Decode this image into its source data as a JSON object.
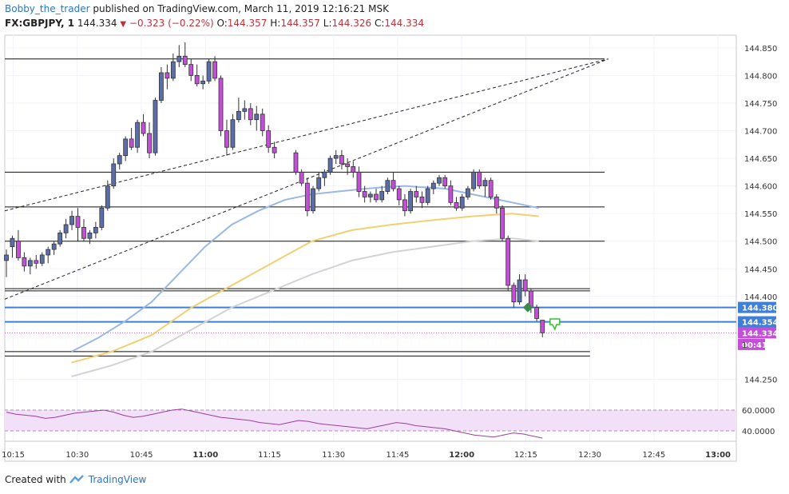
{
  "header": {
    "author": "Bobby_the_trader",
    "published": "published on TradingView.com, March 11, 2019 12:16:21 MSK",
    "symbol": "FX:GBPJPY, 1",
    "last": "144.334",
    "change": "−0.323 (−0.22%)",
    "o_label": "O:",
    "o_value": "144.357",
    "h_label": "H:",
    "h_value": "144.357",
    "l_label": "L:",
    "l_value": "144.326",
    "c_label": "C:",
    "c_value": "144.334"
  },
  "footer": {
    "created_with": "Created with",
    "brand": "TradingView"
  },
  "colors": {
    "bull": "#5b6ea8",
    "bear": "#c24fd6",
    "ma_blue": "#9ab8e6",
    "ma_yellow": "#f0d070",
    "ma_gray": "#d3d3d3",
    "level_blue": "#3f7fd6",
    "rsi_line": "#9c3f9c",
    "rsi_band": "#f1e0f7",
    "price_tag": "#c24fd6"
  },
  "chart_data": {
    "type": "candlestick",
    "x_axis": {
      "tick_labels": [
        "10:15",
        "10:30",
        "10:45",
        "11:00",
        "11:15",
        "11:30",
        "11:45",
        "12:00",
        "12:15",
        "12:30",
        "12:45",
        "13:00"
      ],
      "bold_labels": [
        "11:00",
        "12:00",
        "13:00"
      ],
      "range_minutes": [
        10.0,
        62.0
      ]
    },
    "y_axis": {
      "tick_labels": [
        "144.850",
        "144.800",
        "144.750",
        "144.700",
        "144.650",
        "144.600",
        "144.550",
        "144.500",
        "144.450",
        "144.400",
        "144.250"
      ],
      "ylim": [
        144.213,
        144.873
      ]
    },
    "price_tags": [
      {
        "label": "144.380",
        "value": 144.38,
        "kind": "level"
      },
      {
        "label": "144.354",
        "value": 144.354,
        "kind": "level"
      },
      {
        "label": "144.334",
        "value": 144.334,
        "kind": "last"
      },
      {
        "label": "00:41",
        "value": 144.313,
        "kind": "countdown"
      }
    ],
    "candles": [
      {
        "t": 10.0,
        "o": 144.465,
        "h": 144.485,
        "l": 144.435,
        "c": 144.475
      },
      {
        "t": 11.5,
        "o": 144.49,
        "h": 144.51,
        "l": 144.47,
        "c": 144.505
      },
      {
        "t": 12.5,
        "o": 144.5,
        "h": 144.52,
        "l": 144.465,
        "c": 144.47
      },
      {
        "t": 13.5,
        "o": 144.47,
        "h": 144.48,
        "l": 144.445,
        "c": 144.455
      },
      {
        "t": 14.5,
        "o": 144.455,
        "h": 144.47,
        "l": 144.44,
        "c": 144.465
      },
      {
        "t": 15.5,
        "o": 144.465,
        "h": 144.475,
        "l": 144.45,
        "c": 144.46
      },
      {
        "t": 16.5,
        "o": 144.46,
        "h": 144.48,
        "l": 144.455,
        "c": 144.475
      },
      {
        "t": 17.5,
        "o": 144.475,
        "h": 144.49,
        "l": 144.46,
        "c": 144.485
      },
      {
        "t": 18.5,
        "o": 144.485,
        "h": 144.5,
        "l": 144.475,
        "c": 144.495
      },
      {
        "t": 19.5,
        "o": 144.495,
        "h": 144.52,
        "l": 144.49,
        "c": 144.515
      },
      {
        "t": 20.5,
        "o": 144.515,
        "h": 144.54,
        "l": 144.505,
        "c": 144.53
      },
      {
        "t": 21.5,
        "o": 144.53,
        "h": 144.555,
        "l": 144.52,
        "c": 144.545
      },
      {
        "t": 22.5,
        "o": 144.545,
        "h": 144.56,
        "l": 144.5,
        "c": 144.525
      },
      {
        "t": 23.5,
        "o": 144.525,
        "h": 144.54,
        "l": 144.5,
        "c": 144.505
      },
      {
        "t": 24.5,
        "o": 144.505,
        "h": 144.52,
        "l": 144.495,
        "c": 144.515
      },
      {
        "t": 25.5,
        "o": 144.515,
        "h": 144.535,
        "l": 144.505,
        "c": 144.525
      },
      {
        "t": 26.5,
        "o": 144.525,
        "h": 144.565,
        "l": 144.52,
        "c": 144.56
      },
      {
        "t": 27.5,
        "o": 144.56,
        "h": 144.61,
        "l": 144.555,
        "c": 144.6
      },
      {
        "t": 28.5,
        "o": 144.6,
        "h": 144.65,
        "l": 144.595,
        "c": 144.64
      },
      {
        "t": 29.5,
        "o": 144.64,
        "h": 144.66,
        "l": 144.63,
        "c": 144.655
      },
      {
        "t": 30.5,
        "o": 144.655,
        "h": 144.69,
        "l": 144.645,
        "c": 144.685
      },
      {
        "t": 31.5,
        "o": 144.685,
        "h": 144.705,
        "l": 144.665,
        "c": 144.67
      },
      {
        "t": 32.5,
        "o": 144.67,
        "h": 144.72,
        "l": 144.66,
        "c": 144.715
      },
      {
        "t": 33.5,
        "o": 144.715,
        "h": 144.73,
        "l": 144.69,
        "c": 144.695
      },
      {
        "t": 34.5,
        "o": 144.695,
        "h": 144.715,
        "l": 144.65,
        "c": 144.66
      },
      {
        "t": 35.5,
        "o": 144.66,
        "h": 144.76,
        "l": 144.655,
        "c": 144.755
      },
      {
        "t": 36.5,
        "o": 144.755,
        "h": 144.815,
        "l": 144.75,
        "c": 144.805
      },
      {
        "t": 37.5,
        "o": 144.805,
        "h": 144.82,
        "l": 144.775,
        "c": 144.795
      },
      {
        "t": 38.5,
        "o": 144.795,
        "h": 144.84,
        "l": 144.79,
        "c": 144.825
      },
      {
        "t": 39.5,
        "o": 144.825,
        "h": 144.855,
        "l": 144.815,
        "c": 144.835
      },
      {
        "t": 40.5,
        "o": 144.835,
        "h": 144.86,
        "l": 144.815,
        "c": 144.82
      },
      {
        "t": 41.5,
        "o": 144.82,
        "h": 144.83,
        "l": 144.79,
        "c": 144.8
      },
      {
        "t": 42.5,
        "o": 144.8,
        "h": 144.82,
        "l": 144.78,
        "c": 144.785
      },
      {
        "t": 43.5,
        "o": 144.785,
        "h": 144.8,
        "l": 144.775,
        "c": 144.79
      },
      {
        "t": 44.5,
        "o": 144.79,
        "h": 144.83,
        "l": 144.785,
        "c": 144.825
      },
      {
        "t": 45.5,
        "o": 144.825,
        "h": 144.835,
        "l": 144.79,
        "c": 144.795
      },
      {
        "t": 46.5,
        "o": 144.795,
        "h": 144.8,
        "l": 144.69,
        "c": 144.7
      },
      {
        "t": 47.5,
        "o": 144.7,
        "h": 144.72,
        "l": 144.655,
        "c": 144.67
      },
      {
        "t": 48.5,
        "o": 144.67,
        "h": 144.73,
        "l": 144.665,
        "c": 144.72
      },
      {
        "t": 49.5,
        "o": 144.72,
        "h": 144.76,
        "l": 144.715,
        "c": 144.735
      },
      {
        "t": 50.5,
        "o": 144.735,
        "h": 144.755,
        "l": 144.72,
        "c": 144.74
      },
      {
        "t": 51.5,
        "o": 144.74,
        "h": 144.75,
        "l": 144.71,
        "c": 144.72
      },
      {
        "t": 52.5,
        "o": 144.72,
        "h": 144.745,
        "l": 144.7,
        "c": 144.73
      },
      {
        "t": 53.5,
        "o": 144.73,
        "h": 144.74,
        "l": 144.69,
        "c": 144.7
      },
      {
        "t": 54.5,
        "o": 144.7,
        "h": 144.71,
        "l": 144.66,
        "c": 144.67
      },
      {
        "t": 55.5,
        "o": 144.67,
        "h": 144.68,
        "l": 144.65,
        "c": 144.66
      }
    ],
    "candles_b": [
      {
        "t": 10.0,
        "o": 144.66,
        "h": 144.665,
        "l": 144.62,
        "c": 144.625
      },
      {
        "t": 11.0,
        "o": 144.625,
        "h": 144.63,
        "l": 144.6,
        "c": 144.605
      },
      {
        "t": 12.0,
        "o": 144.605,
        "h": 144.615,
        "l": 144.545,
        "c": 144.555
      },
      {
        "t": 13.0,
        "o": 144.555,
        "h": 144.6,
        "l": 144.55,
        "c": 144.595
      },
      {
        "t": 14.0,
        "o": 144.595,
        "h": 144.625,
        "l": 144.59,
        "c": 144.615
      },
      {
        "t": 15.0,
        "o": 144.615,
        "h": 144.63,
        "l": 144.6,
        "c": 144.625
      },
      {
        "t": 16.0,
        "o": 144.625,
        "h": 144.655,
        "l": 144.62,
        "c": 144.65
      },
      {
        "t": 17.0,
        "o": 144.65,
        "h": 144.665,
        "l": 144.64,
        "c": 144.655
      },
      {
        "t": 18.0,
        "o": 144.655,
        "h": 144.665,
        "l": 144.63,
        "c": 144.64
      },
      {
        "t": 19.0,
        "o": 144.64,
        "h": 144.65,
        "l": 144.62,
        "c": 144.635
      },
      {
        "t": 20.0,
        "o": 144.635,
        "h": 144.645,
        "l": 144.615,
        "c": 144.625
      },
      {
        "t": 21.0,
        "o": 144.625,
        "h": 144.635,
        "l": 144.58,
        "c": 144.59
      },
      {
        "t": 22.0,
        "o": 144.59,
        "h": 144.6,
        "l": 144.57,
        "c": 144.58
      },
      {
        "t": 23.0,
        "o": 144.58,
        "h": 144.59,
        "l": 144.57,
        "c": 144.585
      },
      {
        "t": 24.0,
        "o": 144.585,
        "h": 144.595,
        "l": 144.57,
        "c": 144.575
      },
      {
        "t": 25.0,
        "o": 144.575,
        "h": 144.6,
        "l": 144.57,
        "c": 144.59
      },
      {
        "t": 26.0,
        "o": 144.59,
        "h": 144.615,
        "l": 144.585,
        "c": 144.61
      },
      {
        "t": 27.0,
        "o": 144.61,
        "h": 144.625,
        "l": 144.59,
        "c": 144.595
      },
      {
        "t": 28.0,
        "o": 144.595,
        "h": 144.6,
        "l": 144.565,
        "c": 144.575
      },
      {
        "t": 29.0,
        "o": 144.575,
        "h": 144.585,
        "l": 144.545,
        "c": 144.555
      },
      {
        "t": 30.0,
        "o": 144.555,
        "h": 144.595,
        "l": 144.55,
        "c": 144.59
      },
      {
        "t": 31.0,
        "o": 144.59,
        "h": 144.6,
        "l": 144.57,
        "c": 144.58
      },
      {
        "t": 32.0,
        "o": 144.58,
        "h": 144.59,
        "l": 144.56,
        "c": 144.57
      },
      {
        "t": 33.0,
        "o": 144.57,
        "h": 144.6,
        "l": 144.565,
        "c": 144.595
      },
      {
        "t": 34.0,
        "o": 144.595,
        "h": 144.61,
        "l": 144.585,
        "c": 144.605
      },
      {
        "t": 35.0,
        "o": 144.605,
        "h": 144.62,
        "l": 144.6,
        "c": 144.615
      },
      {
        "t": 36.0,
        "o": 144.615,
        "h": 144.62,
        "l": 144.595,
        "c": 144.6
      },
      {
        "t": 37.0,
        "o": 144.6,
        "h": 144.61,
        "l": 144.565,
        "c": 144.57
      },
      {
        "t": 38.0,
        "o": 144.57,
        "h": 144.58,
        "l": 144.555,
        "c": 144.56
      },
      {
        "t": 39.0,
        "o": 144.56,
        "h": 144.585,
        "l": 144.555,
        "c": 144.58
      },
      {
        "t": 40.0,
        "o": 144.58,
        "h": 144.6,
        "l": 144.575,
        "c": 144.595
      },
      {
        "t": 41.0,
        "o": 144.595,
        "h": 144.63,
        "l": 144.59,
        "c": 144.625
      },
      {
        "t": 42.0,
        "o": 144.625,
        "h": 144.63,
        "l": 144.595,
        "c": 144.6
      },
      {
        "t": 43.0,
        "o": 144.6,
        "h": 144.615,
        "l": 144.58,
        "c": 144.61
      },
      {
        "t": 44.0,
        "o": 144.61,
        "h": 144.615,
        "l": 144.575,
        "c": 144.58
      },
      {
        "t": 45.0,
        "o": 144.58,
        "h": 144.585,
        "l": 144.55,
        "c": 144.56
      },
      {
        "t": 46.0,
        "o": 144.56,
        "h": 144.565,
        "l": 144.5,
        "c": 144.505
      },
      {
        "t": 47.0,
        "o": 144.505,
        "h": 144.51,
        "l": 144.41,
        "c": 144.42
      },
      {
        "t": 48.0,
        "o": 144.42,
        "h": 144.425,
        "l": 144.38,
        "c": 144.39
      },
      {
        "t": 49.0,
        "o": 144.39,
        "h": 144.44,
        "l": 144.385,
        "c": 144.43
      },
      {
        "t": 50.0,
        "o": 144.43,
        "h": 144.44,
        "l": 144.4,
        "c": 144.41
      },
      {
        "t": 51.0,
        "o": 144.41,
        "h": 144.415,
        "l": 144.37,
        "c": 144.38
      },
      {
        "t": 52.0,
        "o": 144.38,
        "h": 144.385,
        "l": 144.355,
        "c": 144.36
      },
      {
        "t": 53.0,
        "o": 144.357,
        "h": 144.357,
        "l": 144.326,
        "c": 144.334
      }
    ],
    "horizontal_levels": [
      144.83,
      144.625,
      144.562,
      144.5,
      144.41,
      144.292
    ],
    "blue_levels": [
      144.38,
      144.354
    ],
    "ma_blue": [
      [
        10,
        144.3
      ],
      [
        14,
        144.325
      ],
      [
        18,
        144.355
      ],
      [
        22,
        144.39
      ],
      [
        26,
        144.44
      ],
      [
        30,
        144.49
      ],
      [
        34,
        144.53
      ],
      [
        38,
        144.555
      ],
      [
        42,
        144.575
      ],
      [
        46,
        144.585
      ],
      [
        50,
        144.59
      ],
      [
        54,
        144.595
      ],
      [
        57,
        144.598
      ],
      [
        60,
        144.6
      ],
      [
        62,
        144.598
      ],
      [
        64,
        144.597
      ],
      [
        66,
        144.595
      ],
      [
        68,
        144.59
      ],
      [
        70,
        144.585
      ],
      [
        72,
        144.58
      ],
      [
        74,
        144.575
      ],
      [
        76,
        144.57
      ],
      [
        78,
        144.565
      ],
      [
        80,
        144.56
      ]
    ],
    "ma_yellow": [
      [
        10,
        144.28
      ],
      [
        16,
        144.3
      ],
      [
        22,
        144.33
      ],
      [
        28,
        144.38
      ],
      [
        34,
        144.42
      ],
      [
        40,
        144.46
      ],
      [
        46,
        144.5
      ],
      [
        52,
        144.52
      ],
      [
        58,
        144.53
      ],
      [
        64,
        144.538
      ],
      [
        70,
        144.545
      ],
      [
        76,
        144.55
      ],
      [
        80,
        144.545
      ]
    ],
    "ma_gray": [
      [
        10,
        144.255
      ],
      [
        16,
        144.275
      ],
      [
        22,
        144.3
      ],
      [
        28,
        144.34
      ],
      [
        34,
        144.38
      ],
      [
        40,
        144.41
      ],
      [
        46,
        144.44
      ],
      [
        52,
        144.465
      ],
      [
        58,
        144.48
      ],
      [
        64,
        144.49
      ],
      [
        70,
        144.5
      ],
      [
        76,
        144.505
      ],
      [
        80,
        144.5
      ]
    ],
    "rsi": {
      "tick_labels": [
        "60.0000",
        "40.0000"
      ],
      "band": [
        40,
        60
      ],
      "ylim": [
        30,
        70
      ],
      "values": [
        58,
        56,
        55,
        54,
        52,
        53,
        55,
        57,
        58,
        59,
        60,
        58,
        55,
        53,
        54,
        56,
        58,
        60,
        61,
        59,
        57,
        55,
        53,
        52,
        51,
        50,
        48,
        47,
        46,
        48,
        50,
        49,
        47,
        46,
        45,
        44,
        43,
        42,
        44,
        46,
        48,
        47,
        45,
        44,
        43,
        42,
        40,
        38,
        36,
        35,
        34,
        36,
        38,
        37,
        35,
        33
      ]
    }
  }
}
